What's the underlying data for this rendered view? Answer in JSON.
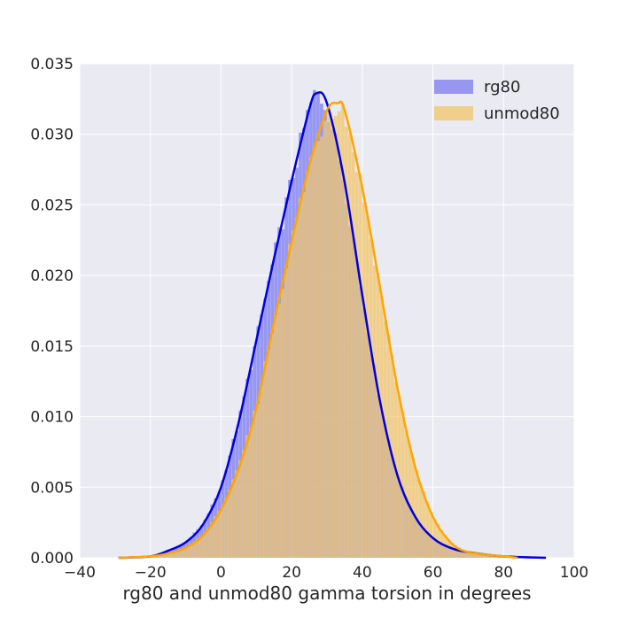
{
  "chart_data": {
    "type": "bar",
    "title": "",
    "xlabel": "rg80 and unmod80 gamma torsion in degrees",
    "ylabel": "",
    "xlim": [
      -40,
      100
    ],
    "ylim": [
      0,
      0.035
    ],
    "x_ticks": [
      "−40",
      "−20",
      "0",
      "20",
      "40",
      "60",
      "80",
      "100"
    ],
    "y_ticks": [
      "0.000",
      "0.005",
      "0.010",
      "0.015",
      "0.020",
      "0.025",
      "0.030",
      "0.035"
    ],
    "grid": true,
    "legend_position": "top-right",
    "background": "#eaeaf2",
    "series": [
      {
        "name": "rg80",
        "hist_color": "#7b7bf2",
        "kde_color": "#0000dd",
        "mean": 26.5,
        "sd": 12.0,
        "skew": 0.2,
        "range": [
          -20,
          92
        ],
        "kde": [
          [
            -29,
            0.0
          ],
          [
            -20,
            0.0001
          ],
          [
            -15,
            0.0005
          ],
          [
            -10,
            0.0011
          ],
          [
            -5,
            0.0024
          ],
          [
            0,
            0.005
          ],
          [
            5,
            0.0096
          ],
          [
            10,
            0.0154
          ],
          [
            15,
            0.0212
          ],
          [
            20,
            0.0267
          ],
          [
            25,
            0.0318
          ],
          [
            27,
            0.0329
          ],
          [
            30,
            0.0322
          ],
          [
            35,
            0.0266
          ],
          [
            40,
            0.0186
          ],
          [
            45,
            0.0111
          ],
          [
            50,
            0.0058
          ],
          [
            55,
            0.0029
          ],
          [
            60,
            0.0014
          ],
          [
            65,
            0.0007
          ],
          [
            70,
            0.0004
          ],
          [
            80,
            0.0001
          ],
          [
            92,
            0.0
          ]
        ]
      },
      {
        "name": "unmod80",
        "hist_color": "#f2c66a",
        "kde_color": "#ffa500",
        "mean": 32.0,
        "sd": 12.5,
        "skew": 0.0,
        "range": [
          -20,
          84
        ],
        "kde": [
          [
            -29,
            0.0
          ],
          [
            -20,
            0.0001
          ],
          [
            -15,
            0.0003
          ],
          [
            -10,
            0.0007
          ],
          [
            -5,
            0.0016
          ],
          [
            0,
            0.0034
          ],
          [
            5,
            0.0063
          ],
          [
            10,
            0.0106
          ],
          [
            15,
            0.0167
          ],
          [
            20,
            0.0224
          ],
          [
            25,
            0.0278
          ],
          [
            30,
            0.0317
          ],
          [
            33,
            0.0322
          ],
          [
            35,
            0.0317
          ],
          [
            40,
            0.0262
          ],
          [
            45,
            0.0192
          ],
          [
            50,
            0.012
          ],
          [
            55,
            0.0064
          ],
          [
            60,
            0.0029
          ],
          [
            65,
            0.0011
          ],
          [
            70,
            0.0004
          ],
          [
            80,
            0.0001
          ],
          [
            84,
            0.0
          ]
        ]
      }
    ]
  }
}
